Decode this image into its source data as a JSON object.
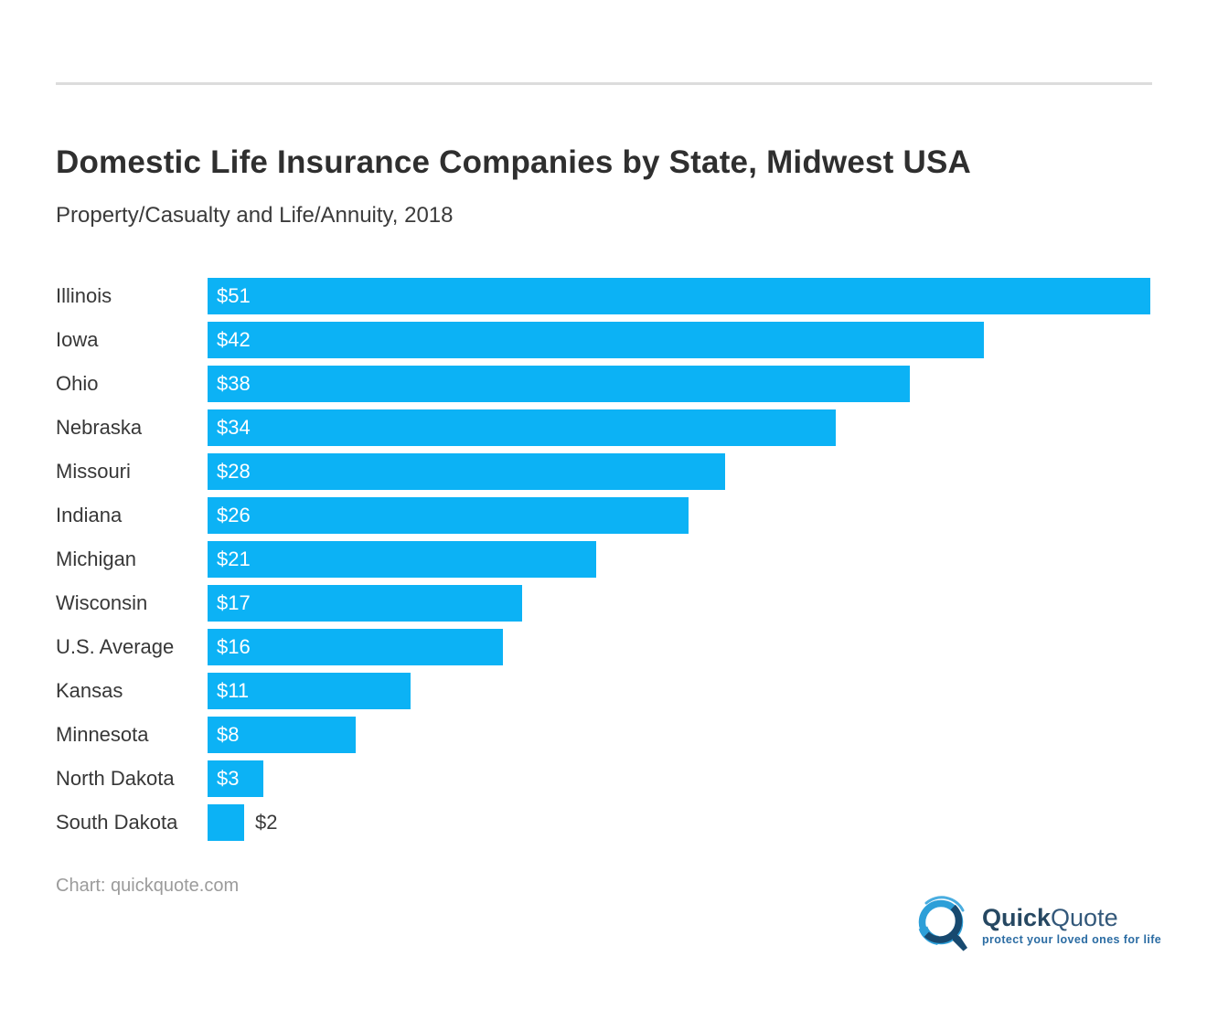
{
  "header": {},
  "chart_data": {
    "type": "bar",
    "orientation": "horizontal",
    "title": "Domestic Life Insurance Companies by State, Midwest USA",
    "subtitle": "Property/Casualty and Life/Annuity, 2018",
    "categories": [
      "Illinois",
      "Iowa",
      "Ohio",
      "Nebraska",
      "Missouri",
      "Indiana",
      "Michigan",
      "Wisconsin",
      "U.S. Average",
      "Kansas",
      "Minnesota",
      "North Dakota",
      "South Dakota"
    ],
    "values": [
      51,
      42,
      38,
      34,
      28,
      26,
      21,
      17,
      16,
      11,
      8,
      3,
      2
    ],
    "value_labels": [
      "$51",
      "$42",
      "$38",
      "$34",
      "$28",
      "$26",
      "$21",
      "$17",
      "$16",
      "$11",
      "$8",
      "$3",
      "$2"
    ],
    "xlim": [
      0,
      51
    ],
    "grid": false,
    "legend": false,
    "bar_color": "#0cb2f5",
    "value_label_position": "inside-left, outside for smallest bar"
  },
  "footer": {
    "credit": "Chart: quickquote.com",
    "logo": {
      "brand_bold": "Quick",
      "brand_light": "Quote",
      "tagline": "protect your loved ones for life"
    }
  },
  "colors": {
    "bar": "#0cb2f5",
    "title_text": "#2f2f2f",
    "label_text": "#373737",
    "credit_text": "#9b9b9b",
    "divider": "#dcdcdc",
    "logo_navy": "#264862",
    "logo_light_blue": "#2d9fd8",
    "logo_dark_blue": "#17496f",
    "tagline_blue": "#2b6ca3"
  }
}
